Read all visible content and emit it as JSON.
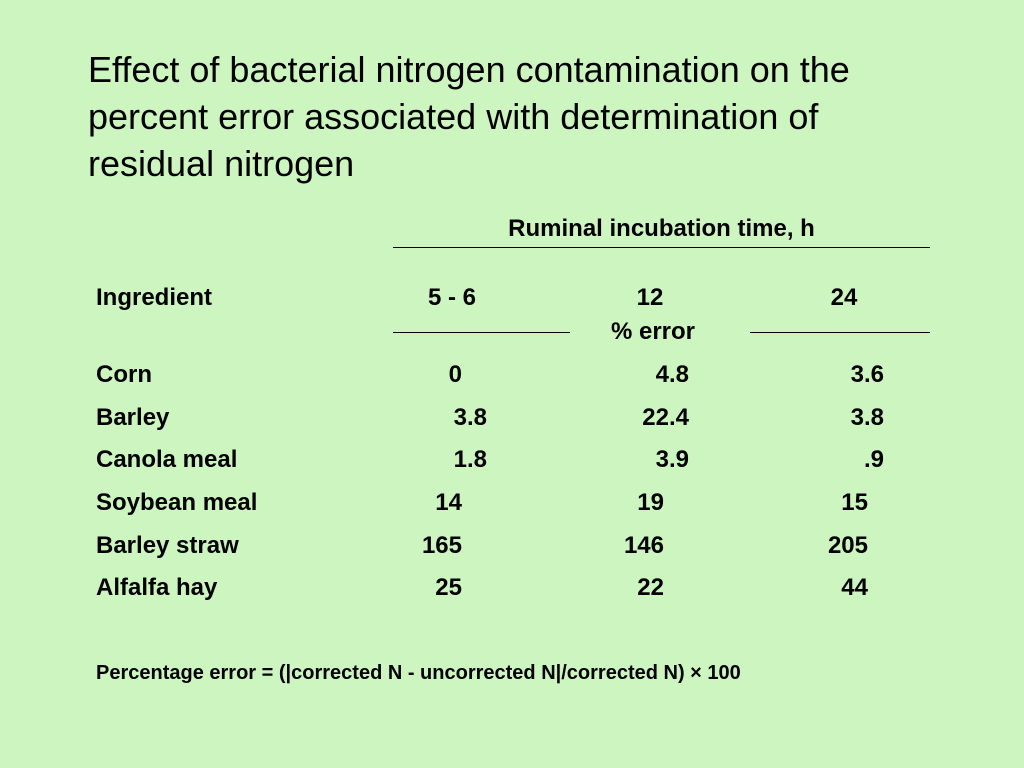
{
  "title_lines": [
    "Effect of bacterial nitrogen contamination on the",
    "percent error associated with determination of",
    "residual nitrogen"
  ],
  "table": {
    "group_header": "Ruminal incubation time, h",
    "columns": [
      "Ingredient",
      "5 - 6",
      "12",
      "24"
    ],
    "unit": "% error",
    "rows": [
      [
        "Corn",
        "0",
        "4.8",
        "3.6"
      ],
      [
        "Barley",
        "3.8",
        "22.4",
        "3.8"
      ],
      [
        "Canola meal",
        "1.8",
        "3.9",
        ".9"
      ],
      [
        "Soybean meal",
        "14",
        "19",
        "15"
      ],
      [
        "Barley straw",
        "165",
        "146",
        "205"
      ],
      [
        "Alfalfa hay",
        "25",
        "22",
        "44"
      ]
    ]
  },
  "footnote": "Percentage error = (|corrected N - uncorrected N|/corrected N) × 100"
}
